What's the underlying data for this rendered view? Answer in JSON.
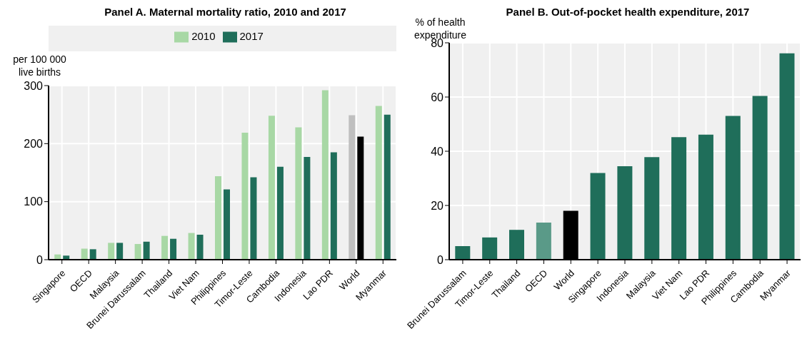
{
  "chart_data": [
    {
      "type": "bar",
      "title": "Panel A. Maternal mortality ratio, 2010 and 2017",
      "ylabel": "per 100 000 live births",
      "categories": [
        "Singapore",
        "OECD",
        "Malaysia",
        "Brunei Darussalam",
        "Thailand",
        "Viet Nam",
        "Philippines",
        "Timor-Leste",
        "Cambodia",
        "Indonesia",
        "Lao PDR",
        "World",
        "Myanmar"
      ],
      "series": [
        {
          "name": "2010",
          "color": "#a8d8a5",
          "colors": [
            "#a8d8a5",
            "#a8d8a5",
            "#a8d8a5",
            "#a8d8a5",
            "#a8d8a5",
            "#a8d8a5",
            "#a8d8a5",
            "#a8d8a5",
            "#a8d8a5",
            "#a8d8a5",
            "#a8d8a5",
            "#bfbfbf",
            "#a8d8a5"
          ],
          "values": [
            9,
            19,
            29,
            27,
            41,
            46,
            144,
            219,
            248,
            228,
            292,
            249,
            265
          ]
        },
        {
          "name": "2017",
          "color": "#1f6e5a",
          "colors": [
            "#1f6e5a",
            "#1f6e5a",
            "#1f6e5a",
            "#1f6e5a",
            "#1f6e5a",
            "#1f6e5a",
            "#1f6e5a",
            "#1f6e5a",
            "#1f6e5a",
            "#1f6e5a",
            "#1f6e5a",
            "#000000",
            "#1f6e5a"
          ],
          "values": [
            7,
            18,
            29,
            31,
            36,
            43,
            121,
            142,
            160,
            177,
            185,
            212,
            250
          ]
        }
      ],
      "ylim": [
        0,
        300
      ],
      "yticks": [
        0,
        100,
        200,
        300
      ],
      "grid": true,
      "legend": "top"
    },
    {
      "type": "bar",
      "title": "Panel B. Out-of-pocket health expenditure, 2017",
      "ylabel": "% of health expenditure",
      "categories": [
        "Brunei Darussalam",
        "Timor-Leste",
        "Thailand",
        "OECD",
        "World",
        "Singapore",
        "Indonesia",
        "Malaysia",
        "Viet Nam",
        "Lao PDR",
        "Philippines",
        "Cambodia",
        "Myanmar"
      ],
      "series": [
        {
          "color": "#1f6e5a",
          "colors": [
            "#1f6e5a",
            "#1f6e5a",
            "#1f6e5a",
            "#5a9a88",
            "#000000",
            "#1f6e5a",
            "#1f6e5a",
            "#1f6e5a",
            "#1f6e5a",
            "#1f6e5a",
            "#1f6e5a",
            "#1f6e5a",
            "#1f6e5a"
          ],
          "values": [
            5,
            8.2,
            11,
            13.7,
            18,
            32,
            34.5,
            37.8,
            45.2,
            46.1,
            53,
            60.4,
            76.1
          ]
        }
      ],
      "ylim": [
        0,
        80
      ],
      "yticks": [
        0,
        20,
        40,
        60,
        80
      ],
      "grid": true
    }
  ]
}
